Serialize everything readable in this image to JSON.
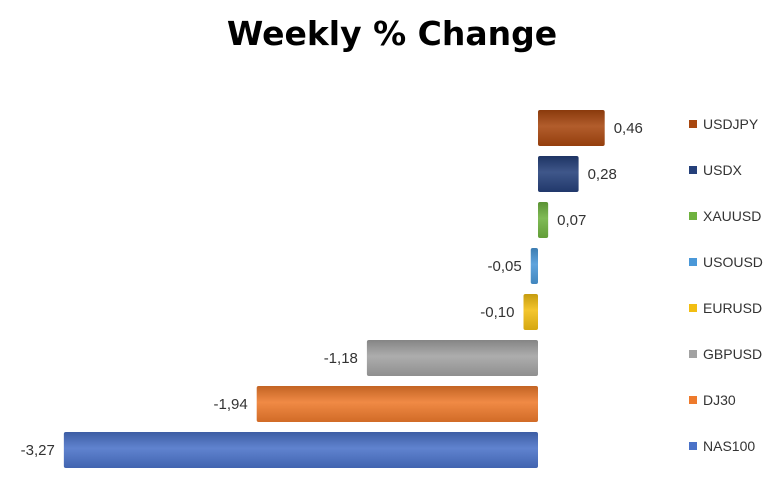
{
  "chart_data": {
    "type": "bar",
    "orientation": "horizontal",
    "title": "Weekly % Change",
    "categories": [
      "USDJPY",
      "USDX",
      "XAUUSD",
      "USOUSD",
      "EURUSD",
      "GBPUSD",
      "DJ30",
      "NAS100"
    ],
    "values": [
      0.46,
      0.28,
      0.07,
      -0.05,
      -0.1,
      -1.18,
      -1.94,
      -3.27
    ],
    "value_labels": [
      "0,46",
      "0,28",
      "0,07",
      "-0,05",
      "-0,10",
      "-1,18",
      "-1,94",
      "-3,27"
    ],
    "colors": [
      "#a8470f",
      "#25407a",
      "#6fb23f",
      "#4a98d8",
      "#f2be12",
      "#a2a2a2",
      "#ee7a2c",
      "#4a72c8"
    ],
    "grid": false,
    "legend_position": "right"
  }
}
